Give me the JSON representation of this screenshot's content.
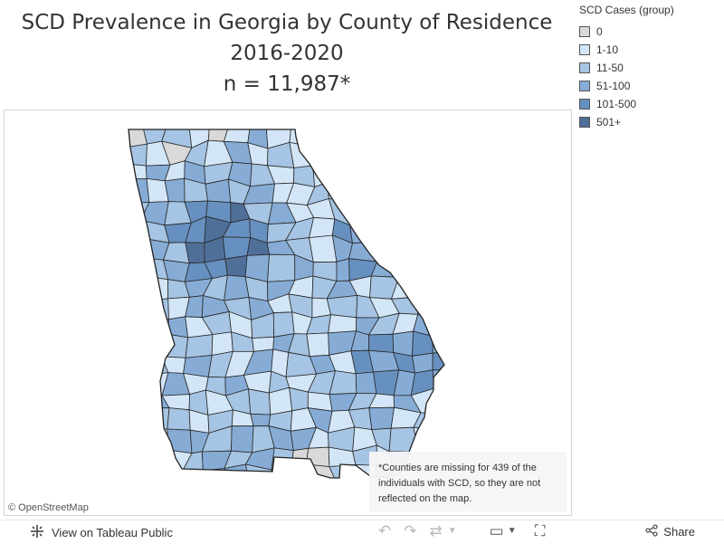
{
  "title": {
    "line1": "SCD Prevalence in Georgia by County of Residence",
    "line2": "2016-2020",
    "line3": "n = 11,987*"
  },
  "legend": {
    "title": "SCD Cases (group)",
    "items": [
      {
        "label": "0",
        "color": "#d9d9d9"
      },
      {
        "label": "1-10",
        "color": "#d3e6f7"
      },
      {
        "label": "11-50",
        "color": "#a6c4e3"
      },
      {
        "label": "51-100",
        "color": "#86acd6"
      },
      {
        "label": "101-500",
        "color": "#6690bf"
      },
      {
        "label": "501+",
        "color": "#4f6f99"
      }
    ]
  },
  "map": {
    "state": "Georgia",
    "attribution": "© OpenStreetMap",
    "note": "*Counties are missing for 439 of the individuals with SCD, so they are not reflected on the map."
  },
  "toolbar": {
    "view_label": "View on Tableau Public",
    "share_label": "Share",
    "icons": [
      "tableau-logo-icon",
      "undo-icon",
      "redo-icon",
      "revert-icon",
      "dropdown-arrow-icon",
      "download-icon",
      "fullscreen-icon",
      "share-icon"
    ]
  }
}
